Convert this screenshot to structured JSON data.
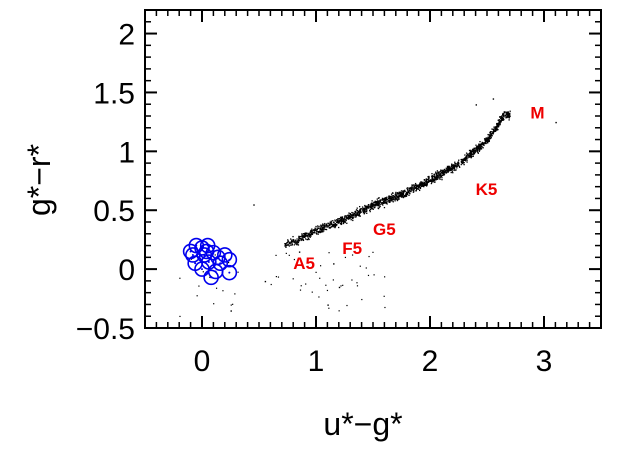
{
  "chart_data": {
    "type": "scatter",
    "title": "",
    "xlabel": "u*−g*",
    "ylabel": "g*−r*",
    "xlim": [
      -0.5,
      3.5
    ],
    "ylim": [
      -0.5,
      2.2
    ],
    "grid": false,
    "legend": "none",
    "x_ticks": [
      0,
      1,
      2,
      3
    ],
    "x_tick_labels": [
      "0",
      "1",
      "2",
      "3"
    ],
    "y_ticks": [
      -0.5,
      0,
      0.5,
      1,
      1.5,
      2
    ],
    "y_tick_labels": [
      "−0.5",
      "0",
      "0.5",
      "1",
      "1.5",
      "2"
    ],
    "stellar_locus": {
      "description_points": [
        {
          "x": 0.75,
          "y": 0.22
        },
        {
          "x": 1.0,
          "y": 0.33
        },
        {
          "x": 1.25,
          "y": 0.43
        },
        {
          "x": 1.5,
          "y": 0.55
        },
        {
          "x": 1.75,
          "y": 0.64
        },
        {
          "x": 2.0,
          "y": 0.76
        },
        {
          "x": 2.25,
          "y": 0.9
        },
        {
          "x": 2.5,
          "y": 1.1
        },
        {
          "x": 2.65,
          "y": 1.32
        }
      ],
      "color": "#000000"
    },
    "outliers": [
      {
        "x": 1.1,
        "y": -0.3
      },
      {
        "x": 1.15,
        "y": 0.05
      },
      {
        "x": 0.25,
        "y": -0.35
      },
      {
        "x": 0.45,
        "y": 0.55
      },
      {
        "x": 3.1,
        "y": 1.25
      },
      {
        "x": 2.4,
        "y": 1.4
      },
      {
        "x": 0.55,
        "y": -0.1
      },
      {
        "x": 1.2,
        "y": -0.15
      },
      {
        "x": 0.85,
        "y": 0.15
      },
      {
        "x": 2.55,
        "y": 1.45
      }
    ],
    "circles": [
      {
        "x": -0.05,
        "y": 0.2
      },
      {
        "x": 0.0,
        "y": 0.18
      },
      {
        "x": 0.05,
        "y": 0.2
      },
      {
        "x": -0.08,
        "y": 0.12
      },
      {
        "x": 0.02,
        "y": 0.12
      },
      {
        "x": 0.1,
        "y": 0.14
      },
      {
        "x": 0.2,
        "y": 0.12
      },
      {
        "x": -0.06,
        "y": 0.05
      },
      {
        "x": 0.06,
        "y": 0.06
      },
      {
        "x": 0.16,
        "y": 0.05
      },
      {
        "x": 0.24,
        "y": 0.08
      },
      {
        "x": 0.0,
        "y": 0.0
      },
      {
        "x": 0.12,
        "y": -0.02
      },
      {
        "x": 0.24,
        "y": -0.03
      },
      {
        "x": 0.08,
        "y": -0.07
      },
      {
        "x": -0.1,
        "y": 0.15
      },
      {
        "x": 0.14,
        "y": 0.1
      },
      {
        "x": 0.04,
        "y": 0.15
      }
    ],
    "circle_color": "#0000ee",
    "annotations": [
      {
        "text": "A5",
        "x": 0.8,
        "y": 0.0
      },
      {
        "text": "F5",
        "x": 1.23,
        "y": 0.13
      },
      {
        "text": "G5",
        "x": 1.5,
        "y": 0.29
      },
      {
        "text": "K5",
        "x": 2.4,
        "y": 0.63
      },
      {
        "text": "M",
        "x": 2.88,
        "y": 1.28
      }
    ],
    "annotation_color": "#ee0000"
  }
}
